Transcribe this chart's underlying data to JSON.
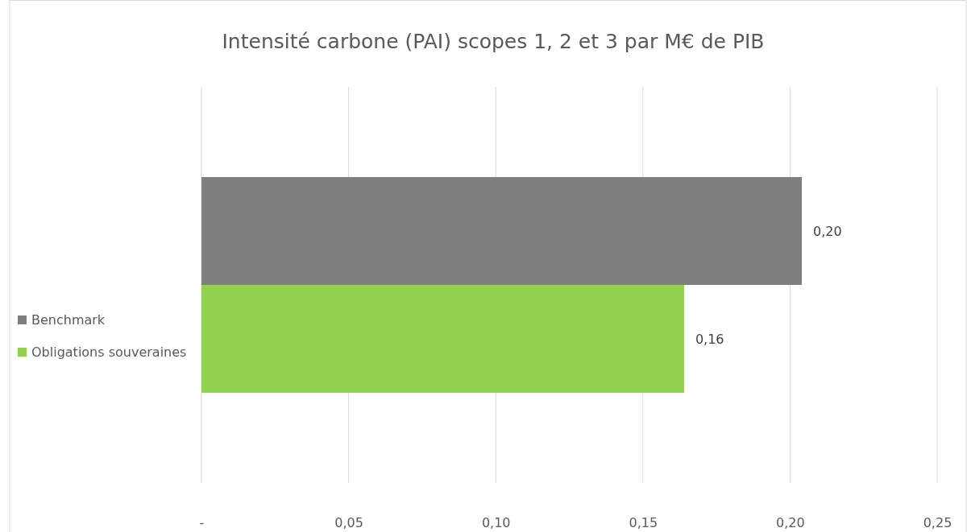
{
  "chart_data": {
    "type": "bar",
    "orientation": "horizontal",
    "title": "Intensité carbone (PAI) scopes 1, 2 et 3 par M€ de PIB",
    "categories": [
      null
    ],
    "series": [
      {
        "name": "Benchmark",
        "color": "#7f7f7f",
        "values": [
          0.204
        ],
        "value_labels": [
          "0,20"
        ]
      },
      {
        "name": "Obligations souveraines",
        "color": "#92d050",
        "values": [
          0.164
        ],
        "value_labels": [
          "0,16"
        ]
      }
    ],
    "xlim": [
      0,
      0.25
    ],
    "xticks": [
      {
        "value": 0,
        "label": "-"
      },
      {
        "value": 0.05,
        "label": "0,05"
      },
      {
        "value": 0.1,
        "label": "0,10"
      },
      {
        "value": 0.15,
        "label": "0,15"
      },
      {
        "value": 0.2,
        "label": "0,20"
      },
      {
        "value": 0.25,
        "label": "0,25"
      }
    ],
    "grid": "x",
    "legend": "left"
  }
}
